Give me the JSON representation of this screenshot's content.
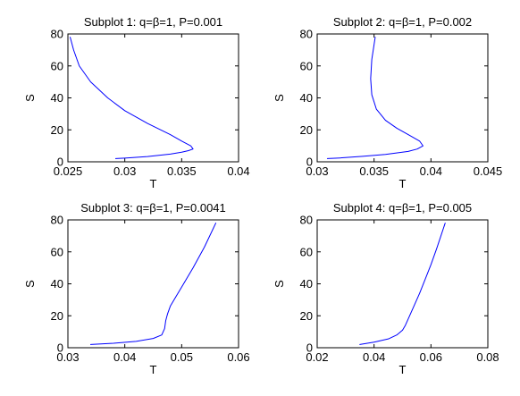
{
  "chart_data": [
    {
      "type": "line",
      "title": "Subplot 1: q=β=1, P=0.001",
      "xlabel": "T",
      "ylabel": "S",
      "xlim": [
        0.025,
        0.04
      ],
      "ylim": [
        0,
        80
      ],
      "xticks": [
        "0.025",
        "0.03",
        "0.035",
        "0.04"
      ],
      "yticks": [
        "0",
        "20",
        "40",
        "60",
        "80"
      ],
      "series": [
        {
          "color": "#0000ff",
          "x": [
            0.0292,
            0.03,
            0.032,
            0.034,
            0.035,
            0.0356,
            0.036,
            0.0358,
            0.035,
            0.034,
            0.032,
            0.03,
            0.0285,
            0.027,
            0.026,
            0.0255,
            0.0252
          ],
          "y": [
            2.0,
            2.3,
            3.3,
            4.8,
            6.0,
            7.0,
            8.0,
            10.0,
            13.0,
            17.0,
            24.0,
            32.0,
            40.0,
            50.0,
            60.0,
            70.0,
            78.0
          ]
        }
      ]
    },
    {
      "type": "line",
      "title": "Subplot 2: q=β=1, P=0.002",
      "xlabel": "T",
      "ylabel": "S",
      "xlim": [
        0.03,
        0.045
      ],
      "ylim": [
        0,
        80
      ],
      "xticks": [
        "0.03",
        "0.035",
        "0.04",
        "0.045"
      ],
      "yticks": [
        "0",
        "20",
        "40",
        "60",
        "80"
      ],
      "series": [
        {
          "color": "#0000ff",
          "x": [
            0.0309,
            0.032,
            0.034,
            0.036,
            0.038,
            0.0388,
            0.0393,
            0.039,
            0.038,
            0.037,
            0.036,
            0.0352,
            0.0348,
            0.0347,
            0.0348,
            0.0351
          ],
          "y": [
            2.0,
            2.4,
            3.4,
            4.6,
            6.5,
            8.0,
            10.0,
            13.0,
            17.0,
            21.0,
            26.0,
            33.0,
            42.0,
            52.0,
            64.0,
            78.0
          ]
        }
      ]
    },
    {
      "type": "line",
      "title": "Subplot 3: q=β=1, P=0.0041",
      "xlabel": "T",
      "ylabel": "S",
      "xlim": [
        0.03,
        0.06
      ],
      "ylim": [
        0,
        80
      ],
      "xticks": [
        "0.03",
        "0.04",
        "0.05",
        "0.06"
      ],
      "yticks": [
        "0",
        "20",
        "40",
        "60",
        "80"
      ],
      "series": [
        {
          "color": "#0000ff",
          "x": [
            0.034,
            0.038,
            0.042,
            0.045,
            0.0465,
            0.047,
            0.0472,
            0.0475,
            0.048,
            0.049,
            0.05,
            0.052,
            0.054,
            0.056
          ],
          "y": [
            2.0,
            2.8,
            4.0,
            5.8,
            8.0,
            12.0,
            17.0,
            21.0,
            26.0,
            32.0,
            38.0,
            50.0,
            63.0,
            78.0
          ]
        }
      ]
    },
    {
      "type": "line",
      "title": "Subplot 4: q=β=1, P=0.005",
      "xlabel": "T",
      "ylabel": "S",
      "xlim": [
        0.02,
        0.08
      ],
      "ylim": [
        0,
        80
      ],
      "xticks": [
        "0.02",
        "0.04",
        "0.06",
        "0.08"
      ],
      "yticks": [
        "0",
        "20",
        "40",
        "60",
        "80"
      ],
      "series": [
        {
          "color": "#0000ff",
          "x": [
            0.035,
            0.04,
            0.045,
            0.048,
            0.05,
            0.051,
            0.052,
            0.054,
            0.056,
            0.058,
            0.06,
            0.062,
            0.065
          ],
          "y": [
            2.0,
            3.5,
            5.5,
            8.0,
            11.0,
            14.0,
            18.0,
            26.0,
            34.0,
            43.0,
            52.0,
            62.0,
            78.0
          ]
        }
      ]
    }
  ]
}
